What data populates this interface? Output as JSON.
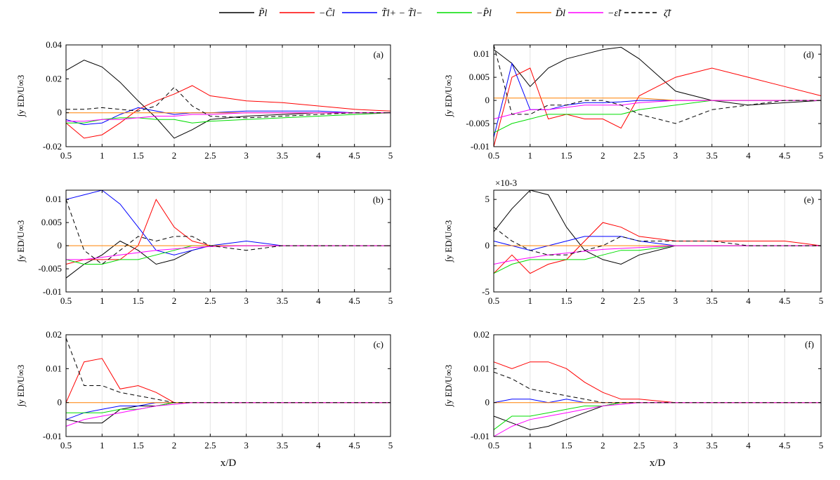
{
  "chart_data": {
    "type": "line",
    "xlabel": "x/D",
    "ylabel": "∫y ED/U∞3",
    "x": [
      0.5,
      0.75,
      1.0,
      1.25,
      1.5,
      1.75,
      2.0,
      2.25,
      2.5,
      3.0,
      3.5,
      4.0,
      4.5,
      5.0
    ],
    "xlim": [
      0.5,
      5
    ],
    "xticks": [
      "0.5",
      "1",
      "1.5",
      "2",
      "2.5",
      "3",
      "3.5",
      "4",
      "4.5",
      "5"
    ],
    "legend": [
      {
        "label": "P̃l",
        "color": "#000000",
        "dash": false
      },
      {
        "label": "−C̃l",
        "color": "#ff0000",
        "dash": false
      },
      {
        "label": "T̃l+ − T̃l−",
        "color": "#0000ff",
        "dash": false
      },
      {
        "label": "−P̂l",
        "color": "#00dd00",
        "dash": false
      },
      {
        "label": "D̃l",
        "color": "#ff8000",
        "dash": false
      },
      {
        "label": "−ε̃l",
        "color": "#ff00ff",
        "dash": false
      },
      {
        "label": "ζ̃l",
        "color": "#000000",
        "dash": true
      }
    ],
    "panels": [
      {
        "tag": "(a)",
        "ylim": [
          -0.02,
          0.04
        ],
        "yticks": [
          "-0.02",
          "0",
          "0.02",
          "0.04"
        ],
        "exp": "",
        "show_xlabel": false,
        "series": [
          [
            0.025,
            0.031,
            0.027,
            0.018,
            0.007,
            -0.003,
            -0.015,
            -0.01,
            -0.004,
            -0.002,
            -0.001,
            0.0,
            0.0,
            0.0
          ],
          [
            -0.006,
            -0.015,
            -0.013,
            -0.006,
            0.002,
            0.007,
            0.011,
            0.016,
            0.01,
            0.007,
            0.006,
            0.004,
            0.002,
            0.001
          ],
          [
            -0.004,
            -0.007,
            -0.006,
            -0.001,
            0.003,
            0.001,
            -0.001,
            0.0,
            0.0,
            0.001,
            0.001,
            0.001,
            0.0,
            0.0
          ],
          [
            -0.006,
            -0.006,
            -0.004,
            -0.003,
            -0.003,
            -0.004,
            -0.004,
            -0.006,
            -0.005,
            -0.004,
            -0.003,
            -0.002,
            -0.001,
            0.0
          ],
          [
            0.0,
            0.0,
            0.0,
            0.0,
            0.0,
            0.0,
            0.0,
            0.0,
            0.0,
            0.0,
            0.0,
            0.0,
            0.0,
            0.0
          ],
          [
            -0.005,
            -0.005,
            -0.004,
            -0.004,
            -0.003,
            -0.002,
            -0.002,
            -0.001,
            -0.001,
            0.0,
            0.0,
            0.0,
            0.0,
            0.0
          ],
          [
            0.002,
            0.002,
            0.003,
            0.002,
            0.001,
            0.004,
            0.015,
            0.004,
            -0.002,
            -0.003,
            -0.002,
            -0.001,
            0.0,
            0.0
          ]
        ]
      },
      {
        "tag": "(b)",
        "ylim": [
          -0.01,
          0.012
        ],
        "yticks": [
          "-0.01",
          "-0.005",
          "0",
          "0.005",
          "0.01"
        ],
        "exp": "",
        "show_xlabel": false,
        "series": [
          [
            -0.007,
            -0.004,
            -0.002,
            0.001,
            -0.001,
            -0.004,
            -0.003,
            -0.001,
            0.0,
            0.0,
            0.0,
            0.0,
            0.0,
            0.0
          ],
          [
            -0.004,
            -0.003,
            -0.003,
            -0.003,
            0.0,
            0.01,
            0.004,
            0.001,
            0.0,
            0.0,
            0.0,
            0.0,
            0.0,
            0.0
          ],
          [
            0.01,
            0.011,
            0.012,
            0.009,
            0.004,
            -0.001,
            -0.002,
            -0.001,
            0.0,
            0.001,
            0.0,
            0.0,
            0.0,
            0.0
          ],
          [
            -0.003,
            -0.004,
            -0.004,
            -0.003,
            -0.003,
            -0.002,
            -0.001,
            0.0,
            0.0,
            0.0,
            0.0,
            0.0,
            0.0,
            0.0
          ],
          [
            0.0,
            0.0,
            0.0,
            0.0,
            0.0,
            0.0,
            0.0,
            0.0,
            0.0,
            0.0,
            0.0,
            0.0,
            0.0,
            0.0
          ],
          [
            -0.003,
            -0.003,
            -0.0025,
            -0.002,
            -0.0015,
            -0.001,
            -0.0007,
            -0.0004,
            -0.0002,
            0.0,
            0.0,
            0.0,
            0.0,
            0.0
          ],
          [
            0.01,
            -0.001,
            -0.004,
            -0.001,
            0.002,
            0.001,
            0.002,
            0.002,
            0.0,
            -0.001,
            0.0,
            0.0,
            0.0,
            0.0
          ]
        ]
      },
      {
        "tag": "(c)",
        "ylim": [
          -0.01,
          0.02
        ],
        "yticks": [
          "-0.01",
          "0",
          "0.01",
          "0.02"
        ],
        "exp": "",
        "show_xlabel": true,
        "series": [
          [
            -0.005,
            -0.006,
            -0.006,
            -0.002,
            -0.001,
            -0.001,
            0.0,
            0.0,
            0.0,
            0.0,
            0.0,
            0.0,
            0.0,
            0.0
          ],
          [
            0.0,
            0.012,
            0.013,
            0.004,
            0.005,
            0.003,
            0.0,
            0.0,
            0.0,
            0.0,
            0.0,
            0.0,
            0.0,
            0.0
          ],
          [
            -0.005,
            -0.003,
            -0.002,
            -0.001,
            -0.001,
            0.0,
            0.0,
            0.0,
            0.0,
            0.0,
            0.0,
            0.0,
            0.0,
            0.0
          ],
          [
            -0.003,
            -0.003,
            -0.003,
            -0.002,
            -0.002,
            -0.001,
            0.0,
            0.0,
            0.0,
            0.0,
            0.0,
            0.0,
            0.0,
            0.0
          ],
          [
            0.0,
            0.0,
            0.0,
            0.0,
            0.0,
            0.0,
            0.0,
            0.0,
            0.0,
            0.0,
            0.0,
            0.0,
            0.0,
            0.0
          ],
          [
            -0.007,
            -0.005,
            -0.004,
            -0.003,
            -0.002,
            -0.001,
            -0.0005,
            0.0,
            0.0,
            0.0,
            0.0,
            0.0,
            0.0,
            0.0
          ],
          [
            0.019,
            0.005,
            0.005,
            0.003,
            0.002,
            0.001,
            0.0,
            0.0,
            0.0,
            0.0,
            0.0,
            0.0,
            0.0,
            0.0
          ]
        ]
      },
      {
        "tag": "(d)",
        "ylim": [
          -0.01,
          0.012
        ],
        "yticks": [
          "-0.01",
          "-0.005",
          "0",
          "0.005",
          "0.01"
        ],
        "exp": "",
        "show_xlabel": false,
        "series": [
          [
            0.011,
            0.008,
            0.003,
            0.007,
            0.009,
            0.01,
            0.011,
            0.0115,
            0.009,
            0.002,
            0.0,
            -0.001,
            -0.0005,
            0.0
          ],
          [
            -0.01,
            0.005,
            0.007,
            -0.004,
            -0.003,
            -0.004,
            -0.004,
            -0.006,
            0.001,
            0.005,
            0.007,
            0.005,
            0.003,
            0.001
          ],
          [
            -0.008,
            0.008,
            -0.002,
            -0.002,
            -0.001,
            -0.0005,
            -0.0005,
            -0.0003,
            0.0,
            0.0,
            0.0,
            0.0,
            0.0,
            0.0
          ],
          [
            -0.007,
            -0.005,
            -0.004,
            -0.003,
            -0.003,
            -0.003,
            -0.003,
            -0.003,
            -0.002,
            -0.001,
            0.0,
            0.0,
            0.0,
            0.0
          ],
          [
            0.0005,
            0.0005,
            0.0005,
            0.0005,
            0.0005,
            0.0005,
            0.0005,
            0.0005,
            0.0005,
            0.0,
            0.0,
            0.0,
            0.0,
            0.0
          ],
          [
            -0.004,
            -0.003,
            -0.002,
            -0.002,
            -0.0015,
            -0.001,
            -0.001,
            -0.001,
            -0.0005,
            0.0,
            0.0,
            0.0,
            0.0,
            0.0
          ],
          [
            0.012,
            -0.003,
            -0.003,
            -0.001,
            -0.001,
            0.0,
            0.0,
            -0.001,
            -0.003,
            -0.005,
            -0.002,
            -0.001,
            0.0,
            0.0
          ]
        ]
      },
      {
        "tag": "(e)",
        "ylim": [
          -5,
          6
        ],
        "yticks": [
          "-5",
          "0",
          "5"
        ],
        "exp": "×10-3",
        "show_xlabel": false,
        "series": [
          [
            1.5,
            4.0,
            6.0,
            5.5,
            2.0,
            -0.5,
            -1.5,
            -2.0,
            -1.0,
            0.0,
            0.0,
            0.0,
            0.0,
            0.0
          ],
          [
            -3.0,
            -1.0,
            -3.0,
            -2.0,
            -1.5,
            0.5,
            2.5,
            2.0,
            1.0,
            0.5,
            0.5,
            0.5,
            0.5,
            0.0
          ],
          [
            0.5,
            0.0,
            -0.5,
            0.0,
            0.5,
            1.0,
            1.0,
            1.0,
            0.5,
            0.0,
            0.0,
            0.0,
            0.0,
            0.0
          ],
          [
            -3.0,
            -2.0,
            -1.5,
            -1.5,
            -1.5,
            -1.5,
            -1.0,
            -0.5,
            -0.5,
            0.0,
            0.0,
            0.0,
            0.0,
            0.0
          ],
          [
            0.0,
            0.0,
            0.0,
            0.0,
            0.0,
            0.0,
            0.0,
            0.0,
            0.0,
            0.0,
            0.0,
            0.0,
            0.0,
            0.0
          ],
          [
            -2.0,
            -1.6,
            -1.3,
            -1.0,
            -0.8,
            -0.6,
            -0.4,
            -0.3,
            -0.2,
            0.0,
            0.0,
            0.0,
            0.0,
            0.0
          ],
          [
            2.0,
            0.5,
            -0.5,
            -1.0,
            -1.0,
            -0.5,
            0.0,
            1.0,
            0.5,
            0.5,
            0.5,
            0.0,
            0.0,
            0.0
          ]
        ]
      },
      {
        "tag": "(f)",
        "ylim": [
          -0.01,
          0.02
        ],
        "yticks": [
          "-0.01",
          "0",
          "0.01",
          "0.02"
        ],
        "exp": "",
        "show_xlabel": true,
        "series": [
          [
            -0.004,
            -0.006,
            -0.008,
            -0.007,
            -0.005,
            -0.003,
            -0.001,
            0.0,
            0.0,
            0.0,
            0.0,
            0.0,
            0.0,
            0.0
          ],
          [
            0.012,
            0.01,
            0.012,
            0.012,
            0.01,
            0.006,
            0.003,
            0.001,
            0.001,
            0.0,
            0.0,
            0.0,
            0.0,
            0.0
          ],
          [
            0.0,
            0.001,
            0.001,
            0.0,
            0.001,
            0.0,
            0.0,
            0.0,
            0.0,
            0.0,
            0.0,
            0.0,
            0.0,
            0.0
          ],
          [
            -0.008,
            -0.004,
            -0.004,
            -0.003,
            -0.002,
            -0.001,
            -0.001,
            0.0,
            0.0,
            0.0,
            0.0,
            0.0,
            0.0,
            0.0
          ],
          [
            0.0,
            0.0,
            0.0,
            0.0,
            0.0,
            0.0,
            0.0,
            0.0,
            0.0,
            0.0,
            0.0,
            0.0,
            0.0,
            0.0
          ],
          [
            -0.01,
            -0.007,
            -0.005,
            -0.004,
            -0.003,
            -0.002,
            -0.001,
            -0.0005,
            0.0,
            0.0,
            0.0,
            0.0,
            0.0,
            0.0
          ],
          [
            0.009,
            0.007,
            0.004,
            0.003,
            0.002,
            0.001,
            0.0,
            0.0,
            0.0,
            0.0,
            0.0,
            0.0,
            0.0,
            0.0
          ]
        ]
      }
    ]
  }
}
